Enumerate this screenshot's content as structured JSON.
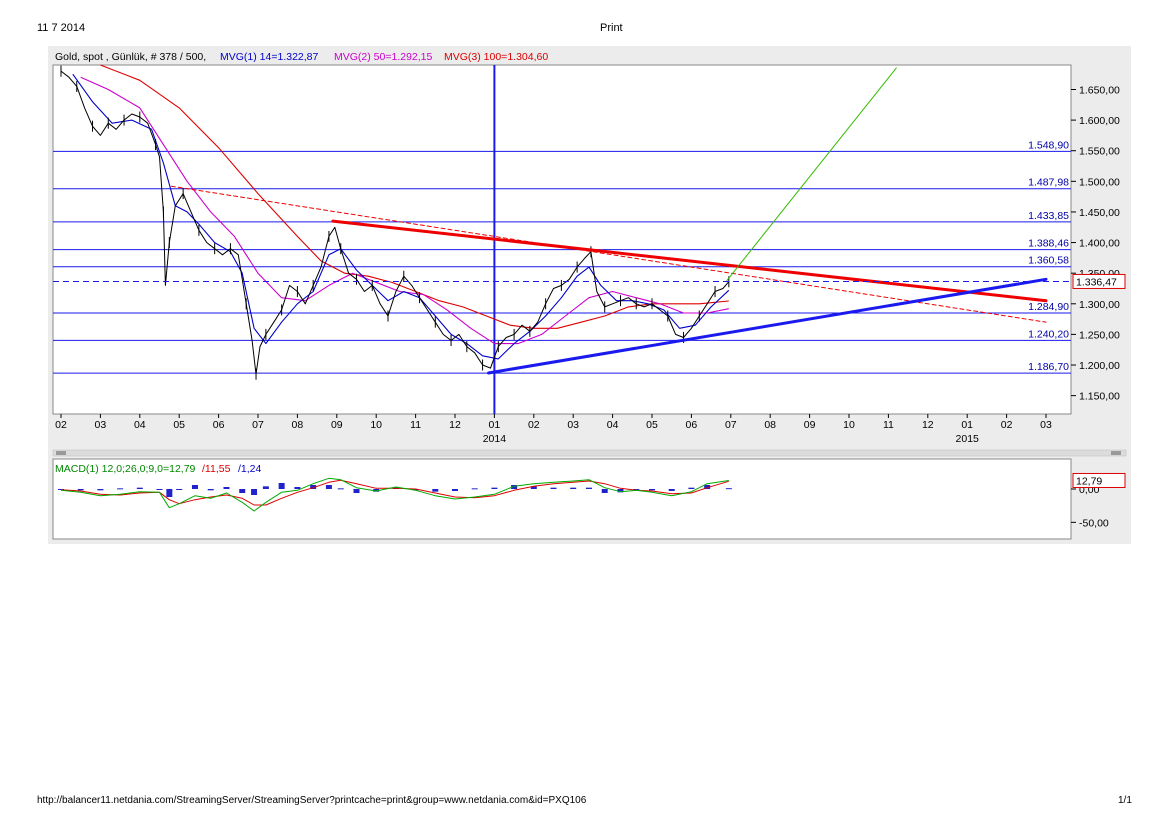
{
  "page": {
    "date": "11 7 2014",
    "title": "Print",
    "url": "http://balancer11.netdania.com/StreamingServer/StreamingServer?printcache=print&group=www.netdania.com&id=PXQ106",
    "page_num": "1/1"
  },
  "chart_data": {
    "type": "line",
    "header": {
      "instrument": "Gold, spot , Günlük, # 378 / 500,",
      "ma1": "MVG(1) 14=1.322,87",
      "ma2": "MVG(2) 50=1.292,15",
      "ma3": "MVG(3) 100=1.304,60",
      "ma1_color": "#0000cc",
      "ma2_color": "#cc00cc",
      "ma3_color": "#dd0000"
    },
    "ylim": [
      1120,
      1690
    ],
    "y_ticks": [
      1150,
      1200,
      1250,
      1300,
      1350,
      1400,
      1450,
      1500,
      1550,
      1600,
      1650
    ],
    "y_tick_labels": [
      "1.150,00",
      "1.200,00",
      "1.250,00",
      "1.300,00",
      "1.350,00",
      "1.400,00",
      "1.450,00",
      "1.500,00",
      "1.550,00",
      "1.600,00",
      "1.650,00"
    ],
    "x_tick_labels": [
      "02",
      "03",
      "04",
      "05",
      "06",
      "07",
      "08",
      "09",
      "10",
      "11",
      "12",
      "01",
      "02",
      "03",
      "04",
      "05",
      "06",
      "07",
      "08",
      "09",
      "10",
      "11",
      "12",
      "01",
      "02",
      "03"
    ],
    "year_labels": [
      {
        "label": "2014",
        "at_month_index": 11
      },
      {
        "label": "2015",
        "at_month_index": 23
      }
    ],
    "horizontal_levels": [
      {
        "value": 1548.9,
        "label": "1.548,90"
      },
      {
        "value": 1487.98,
        "label": "1.487,98"
      },
      {
        "value": 1433.85,
        "label": "1.433,85"
      },
      {
        "value": 1388.46,
        "label": "1.388,46"
      },
      {
        "value": 1360.58,
        "label": "1.360,58"
      },
      {
        "value": 1284.9,
        "label": "1.284,90"
      },
      {
        "value": 1240.2,
        "label": "1.240,20"
      },
      {
        "value": 1186.7,
        "label": "1.186,70"
      }
    ],
    "last_price": {
      "value": 1336.47,
      "label": "1.336,47"
    },
    "vertical_marker_month_index": 11,
    "price_series": [
      [
        0,
        1680
      ],
      [
        0.2,
        1670
      ],
      [
        0.4,
        1655
      ],
      [
        0.6,
        1620
      ],
      [
        0.8,
        1590
      ],
      [
        1.0,
        1575
      ],
      [
        1.2,
        1595
      ],
      [
        1.4,
        1585
      ],
      [
        1.6,
        1600
      ],
      [
        1.8,
        1610
      ],
      [
        2.0,
        1605
      ],
      [
        2.2,
        1595
      ],
      [
        2.4,
        1560
      ],
      [
        2.5,
        1540
      ],
      [
        2.6,
        1450
      ],
      [
        2.65,
        1330
      ],
      [
        2.75,
        1400
      ],
      [
        2.9,
        1460
      ],
      [
        3.1,
        1480
      ],
      [
        3.3,
        1450
      ],
      [
        3.5,
        1420
      ],
      [
        3.7,
        1400
      ],
      [
        3.9,
        1390
      ],
      [
        4.1,
        1380
      ],
      [
        4.3,
        1390
      ],
      [
        4.5,
        1380
      ],
      [
        4.7,
        1300
      ],
      [
        4.85,
        1240
      ],
      [
        4.95,
        1185
      ],
      [
        5.05,
        1230
      ],
      [
        5.2,
        1250
      ],
      [
        5.4,
        1270
      ],
      [
        5.6,
        1290
      ],
      [
        5.8,
        1330
      ],
      [
        6.0,
        1320
      ],
      [
        6.2,
        1300
      ],
      [
        6.4,
        1330
      ],
      [
        6.6,
        1360
      ],
      [
        6.8,
        1410
      ],
      [
        6.95,
        1425
      ],
      [
        7.1,
        1390
      ],
      [
        7.3,
        1350
      ],
      [
        7.5,
        1340
      ],
      [
        7.7,
        1320
      ],
      [
        7.9,
        1330
      ],
      [
        8.1,
        1300
      ],
      [
        8.3,
        1280
      ],
      [
        8.5,
        1320
      ],
      [
        8.7,
        1345
      ],
      [
        8.9,
        1330
      ],
      [
        9.1,
        1310
      ],
      [
        9.3,
        1290
      ],
      [
        9.5,
        1270
      ],
      [
        9.7,
        1250
      ],
      [
        9.9,
        1240
      ],
      [
        10.1,
        1250
      ],
      [
        10.3,
        1230
      ],
      [
        10.5,
        1220
      ],
      [
        10.7,
        1200
      ],
      [
        10.9,
        1195
      ],
      [
        11.1,
        1230
      ],
      [
        11.3,
        1245
      ],
      [
        11.5,
        1250
      ],
      [
        11.7,
        1265
      ],
      [
        11.9,
        1255
      ],
      [
        12.1,
        1270
      ],
      [
        12.3,
        1300
      ],
      [
        12.5,
        1325
      ],
      [
        12.7,
        1330
      ],
      [
        12.9,
        1340
      ],
      [
        13.1,
        1360
      ],
      [
        13.3,
        1375
      ],
      [
        13.45,
        1385
      ],
      [
        13.6,
        1320
      ],
      [
        13.8,
        1295
      ],
      [
        14.0,
        1300
      ],
      [
        14.2,
        1305
      ],
      [
        14.4,
        1310
      ],
      [
        14.6,
        1300
      ],
      [
        14.8,
        1295
      ],
      [
        15.0,
        1300
      ],
      [
        15.2,
        1290
      ],
      [
        15.4,
        1280
      ],
      [
        15.6,
        1250
      ],
      [
        15.8,
        1245
      ],
      [
        16.0,
        1260
      ],
      [
        16.2,
        1280
      ],
      [
        16.4,
        1300
      ],
      [
        16.6,
        1320
      ],
      [
        16.8,
        1325
      ],
      [
        16.95,
        1336
      ]
    ],
    "ma14_series": [
      [
        0.3,
        1675
      ],
      [
        0.8,
        1630
      ],
      [
        1.3,
        1595
      ],
      [
        1.8,
        1600
      ],
      [
        2.3,
        1585
      ],
      [
        2.6,
        1530
      ],
      [
        2.9,
        1460
      ],
      [
        3.2,
        1450
      ],
      [
        3.5,
        1430
      ],
      [
        3.9,
        1400
      ],
      [
        4.3,
        1385
      ],
      [
        4.6,
        1350
      ],
      [
        4.9,
        1260
      ],
      [
        5.2,
        1235
      ],
      [
        5.6,
        1270
      ],
      [
        6.0,
        1300
      ],
      [
        6.4,
        1320
      ],
      [
        6.8,
        1380
      ],
      [
        7.1,
        1390
      ],
      [
        7.5,
        1355
      ],
      [
        7.9,
        1330
      ],
      [
        8.3,
        1305
      ],
      [
        8.7,
        1320
      ],
      [
        9.1,
        1310
      ],
      [
        9.5,
        1280
      ],
      [
        9.9,
        1250
      ],
      [
        10.3,
        1235
      ],
      [
        10.7,
        1215
      ],
      [
        11.1,
        1210
      ],
      [
        11.5,
        1235
      ],
      [
        11.9,
        1255
      ],
      [
        12.3,
        1280
      ],
      [
        12.7,
        1310
      ],
      [
        13.1,
        1345
      ],
      [
        13.4,
        1360
      ],
      [
        13.7,
        1330
      ],
      [
        14.1,
        1305
      ],
      [
        14.5,
        1305
      ],
      [
        14.9,
        1300
      ],
      [
        15.3,
        1290
      ],
      [
        15.7,
        1260
      ],
      [
        16.1,
        1265
      ],
      [
        16.5,
        1295
      ],
      [
        16.95,
        1322
      ]
    ],
    "ma50_series": [
      [
        0.5,
        1670
      ],
      [
        1.2,
        1650
      ],
      [
        2.0,
        1620
      ],
      [
        2.6,
        1560
      ],
      [
        3.2,
        1500
      ],
      [
        3.8,
        1450
      ],
      [
        4.4,
        1410
      ],
      [
        5.0,
        1350
      ],
      [
        5.6,
        1310
      ],
      [
        6.2,
        1305
      ],
      [
        6.8,
        1330
      ],
      [
        7.4,
        1350
      ],
      [
        8.0,
        1335
      ],
      [
        8.6,
        1320
      ],
      [
        9.2,
        1315
      ],
      [
        9.8,
        1290
      ],
      [
        10.4,
        1260
      ],
      [
        11.0,
        1235
      ],
      [
        11.6,
        1235
      ],
      [
        12.2,
        1250
      ],
      [
        12.8,
        1280
      ],
      [
        13.4,
        1310
      ],
      [
        14.0,
        1320
      ],
      [
        14.6,
        1310
      ],
      [
        15.2,
        1300
      ],
      [
        15.8,
        1285
      ],
      [
        16.4,
        1285
      ],
      [
        16.95,
        1292
      ]
    ],
    "ma100_series": [
      [
        1.0,
        1690
      ],
      [
        2.0,
        1665
      ],
      [
        3.0,
        1620
      ],
      [
        4.0,
        1555
      ],
      [
        5.0,
        1480
      ],
      [
        6.0,
        1410
      ],
      [
        6.6,
        1370
      ],
      [
        7.2,
        1350
      ],
      [
        7.8,
        1345
      ],
      [
        8.4,
        1335
      ],
      [
        9.0,
        1320
      ],
      [
        9.6,
        1305
      ],
      [
        10.2,
        1295
      ],
      [
        10.8,
        1280
      ],
      [
        11.4,
        1265
      ],
      [
        12.0,
        1260
      ],
      [
        12.6,
        1260
      ],
      [
        13.2,
        1270
      ],
      [
        13.8,
        1280
      ],
      [
        14.4,
        1295
      ],
      [
        15.0,
        1300
      ],
      [
        15.6,
        1300
      ],
      [
        16.2,
        1300
      ],
      [
        16.95,
        1304.6
      ]
    ],
    "trendlines": [
      {
        "name": "resistance",
        "color": "#ee0000",
        "width": 3,
        "from": [
          6.9,
          1435
        ],
        "to": [
          25.0,
          1305
        ]
      },
      {
        "name": "resistance-thin",
        "color": "#ee0000",
        "width": 1,
        "dash": "4 3",
        "from": [
          2.8,
          1492
        ],
        "to": [
          25.0,
          1270
        ]
      },
      {
        "name": "support",
        "color": "#1a1aee",
        "width": 3,
        "from": [
          10.85,
          1187
        ],
        "to": [
          25.0,
          1340
        ]
      },
      {
        "name": "projection",
        "color": "#33bb00",
        "width": 1,
        "from": [
          16.9,
          1338
        ],
        "to": [
          21.2,
          1685
        ]
      }
    ],
    "macd": {
      "header": "MACD(1) 12,0;26,0;9,0=12,79/11,55/1,24",
      "label_main": "MACD(1) 12,0;26,0;9,0=12,79",
      "label_signal": "/11,55",
      "label_hist": "/1,24",
      "ylim": [
        -75,
        45
      ],
      "y_ticks": [
        0,
        -50
      ],
      "y_tick_labels": [
        "0,00",
        "-50,00"
      ],
      "last_label": "12,79",
      "main_series": [
        [
          0,
          -2
        ],
        [
          0.5,
          -5
        ],
        [
          1.0,
          -10
        ],
        [
          1.5,
          -8
        ],
        [
          2.0,
          -4
        ],
        [
          2.5,
          -5
        ],
        [
          2.75,
          -28
        ],
        [
          3.0,
          -22
        ],
        [
          3.4,
          -10
        ],
        [
          3.8,
          -14
        ],
        [
          4.2,
          -6
        ],
        [
          4.6,
          -20
        ],
        [
          4.9,
          -33
        ],
        [
          5.2,
          -20
        ],
        [
          5.6,
          -5
        ],
        [
          6.0,
          -2
        ],
        [
          6.4,
          8
        ],
        [
          6.8,
          16
        ],
        [
          7.1,
          14
        ],
        [
          7.5,
          2
        ],
        [
          8.0,
          -3
        ],
        [
          8.5,
          3
        ],
        [
          9.0,
          -2
        ],
        [
          9.5,
          -10
        ],
        [
          10.0,
          -15
        ],
        [
          10.5,
          -12
        ],
        [
          11.0,
          -8
        ],
        [
          11.5,
          4
        ],
        [
          12.0,
          8
        ],
        [
          12.5,
          10
        ],
        [
          13.0,
          12
        ],
        [
          13.4,
          14
        ],
        [
          13.8,
          2
        ],
        [
          14.2,
          -4
        ],
        [
          14.6,
          -2
        ],
        [
          15.0,
          -5
        ],
        [
          15.5,
          -10
        ],
        [
          16.0,
          -4
        ],
        [
          16.4,
          8
        ],
        [
          16.95,
          12.79
        ]
      ],
      "signal_series": [
        [
          0,
          -1
        ],
        [
          0.5,
          -3
        ],
        [
          1.0,
          -8
        ],
        [
          1.5,
          -9
        ],
        [
          2.0,
          -6
        ],
        [
          2.5,
          -5
        ],
        [
          2.75,
          -16
        ],
        [
          3.0,
          -22
        ],
        [
          3.4,
          -16
        ],
        [
          3.8,
          -12
        ],
        [
          4.2,
          -9
        ],
        [
          4.6,
          -14
        ],
        [
          4.9,
          -24
        ],
        [
          5.2,
          -24
        ],
        [
          5.6,
          -14
        ],
        [
          6.0,
          -5
        ],
        [
          6.4,
          2
        ],
        [
          6.8,
          10
        ],
        [
          7.1,
          13
        ],
        [
          7.5,
          8
        ],
        [
          8.0,
          1
        ],
        [
          8.5,
          1
        ],
        [
          9.0,
          0
        ],
        [
          9.5,
          -6
        ],
        [
          10.0,
          -12
        ],
        [
          10.5,
          -13
        ],
        [
          11.0,
          -10
        ],
        [
          11.5,
          -2
        ],
        [
          12.0,
          4
        ],
        [
          12.5,
          8
        ],
        [
          13.0,
          10
        ],
        [
          13.4,
          12
        ],
        [
          13.8,
          8
        ],
        [
          14.2,
          1
        ],
        [
          14.6,
          -2
        ],
        [
          15.0,
          -3
        ],
        [
          15.5,
          -7
        ],
        [
          16.0,
          -6
        ],
        [
          16.4,
          2
        ],
        [
          16.95,
          11.55
        ]
      ]
    }
  }
}
